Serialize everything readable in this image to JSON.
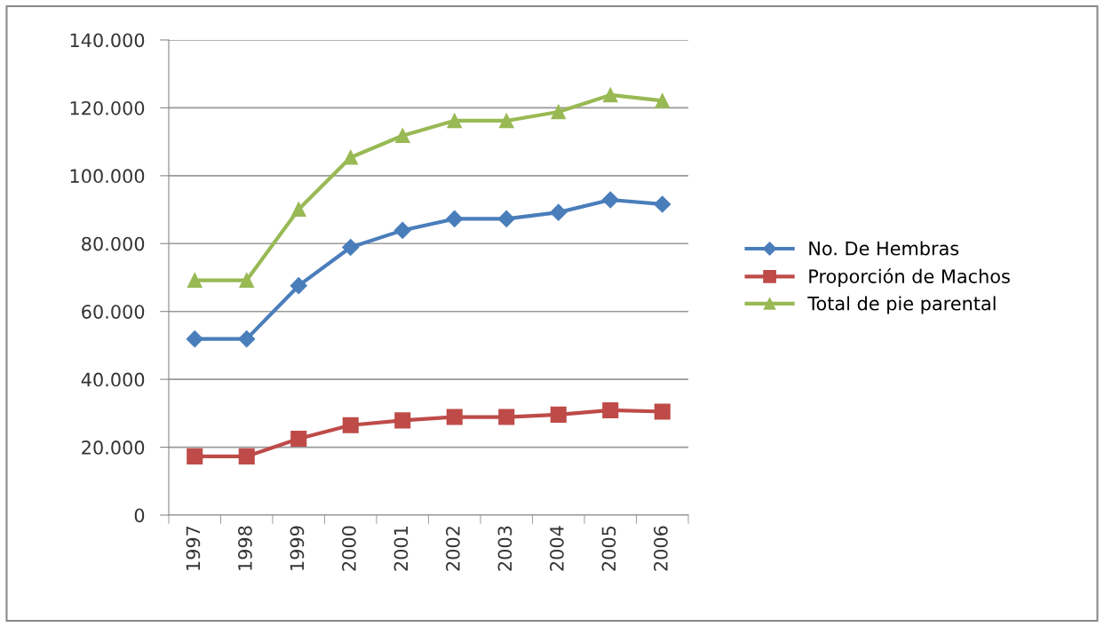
{
  "chart_data": {
    "type": "line",
    "categories": [
      "1997",
      "1998",
      "1999",
      "2000",
      "2001",
      "2002",
      "2003",
      "2004",
      "2005",
      "2006"
    ],
    "series": [
      {
        "name": "No. De Hembras",
        "color": "#4a7ebb",
        "marker": "diamond",
        "values": [
          51900,
          51900,
          67600,
          78900,
          83900,
          87300,
          87300,
          89200,
          92900,
          91600
        ]
      },
      {
        "name": "Proporción de Machos",
        "color": "#be4b48",
        "marker": "square",
        "values": [
          17300,
          17300,
          22500,
          26500,
          27900,
          28900,
          28900,
          29600,
          30900,
          30500
        ]
      },
      {
        "name": "Total de pie parental",
        "color": "#98b954",
        "marker": "triangle",
        "values": [
          69200,
          69200,
          90100,
          105400,
          111800,
          116200,
          116200,
          118800,
          123800,
          122100
        ]
      }
    ],
    "ylim": [
      0,
      140000
    ],
    "yticks": [
      {
        "value": 0,
        "label": "0"
      },
      {
        "value": 20000,
        "label": "20.000"
      },
      {
        "value": 40000,
        "label": "40.000"
      },
      {
        "value": 60000,
        "label": "60.000"
      },
      {
        "value": 80000,
        "label": "80.000"
      },
      {
        "value": 100000,
        "label": "100.000"
      },
      {
        "value": 120000,
        "label": "120.000"
      },
      {
        "value": 140000,
        "label": "140.000"
      }
    ],
    "grid": "y",
    "legend": "right"
  }
}
